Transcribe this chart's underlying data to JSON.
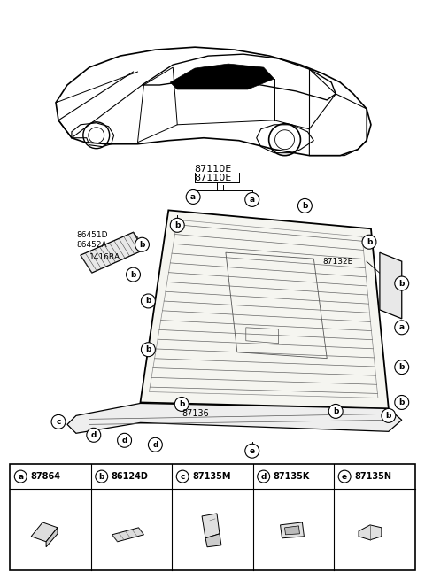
{
  "bg_color": "#ffffff",
  "parts": [
    {
      "label": "a",
      "part_no": "87864"
    },
    {
      "label": "b",
      "part_no": "86124D"
    },
    {
      "label": "c",
      "part_no": "87135M"
    },
    {
      "label": "d",
      "part_no": "87135K"
    },
    {
      "label": "e",
      "part_no": "87135N"
    }
  ],
  "label_87110E": "87110E",
  "label_86451D": "86451D",
  "label_86452A": "86452A",
  "label_1416BA": "1416BA",
  "label_87132E": "87132E",
  "label_87136": "87136",
  "line_color": "#000000",
  "callout_size": 0.016,
  "callout_fontsize": 6.5
}
